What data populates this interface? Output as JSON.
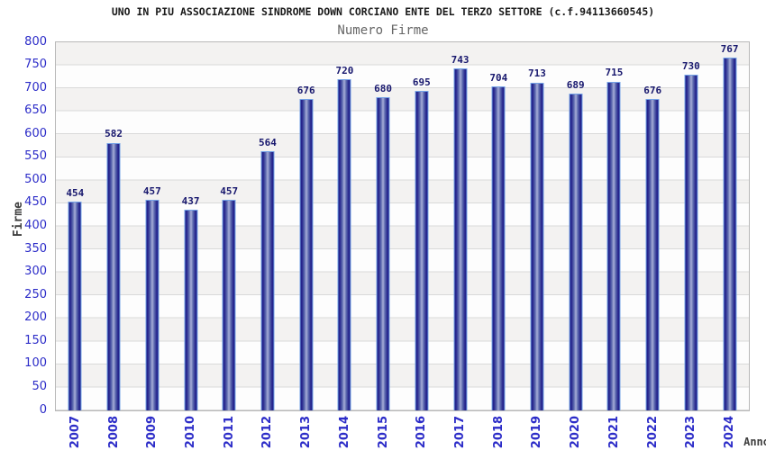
{
  "chart_data": {
    "type": "bar",
    "title": "UNO IN PIU ASSOCIAZIONE SINDROME DOWN CORCIANO ENTE DEL TERZO SETTORE (c.f.94113660545)",
    "subtitle": "Numero Firme",
    "xlabel": "Anno",
    "ylabel": "Firme",
    "categories": [
      "2007",
      "2008",
      "2009",
      "2010",
      "2011",
      "2012",
      "2013",
      "2014",
      "2015",
      "2016",
      "2017",
      "2018",
      "2019",
      "2020",
      "2021",
      "2022",
      "2023",
      "2024"
    ],
    "values": [
      454,
      582,
      457,
      437,
      457,
      564,
      676,
      720,
      680,
      695,
      743,
      704,
      713,
      689,
      715,
      676,
      730,
      767
    ],
    "ylim": [
      0,
      800
    ],
    "y_tick_step": 50,
    "legend": "none",
    "grid": "alternating horizontal bands every 50 units",
    "colors": {
      "bar_dark": "#20208a",
      "bar_center": "#a7aed8",
      "bar_border": "#74a2e6",
      "value_label": "#18186e",
      "tick_label": "#2c2cc8",
      "title": "#1a1a1a",
      "subtitle": "#666666",
      "axis_title": "#3f3f3f",
      "band_gray": "#f3f2f1",
      "band_white": "#fdfdfd",
      "plot_border": "#b8b8b8"
    }
  }
}
